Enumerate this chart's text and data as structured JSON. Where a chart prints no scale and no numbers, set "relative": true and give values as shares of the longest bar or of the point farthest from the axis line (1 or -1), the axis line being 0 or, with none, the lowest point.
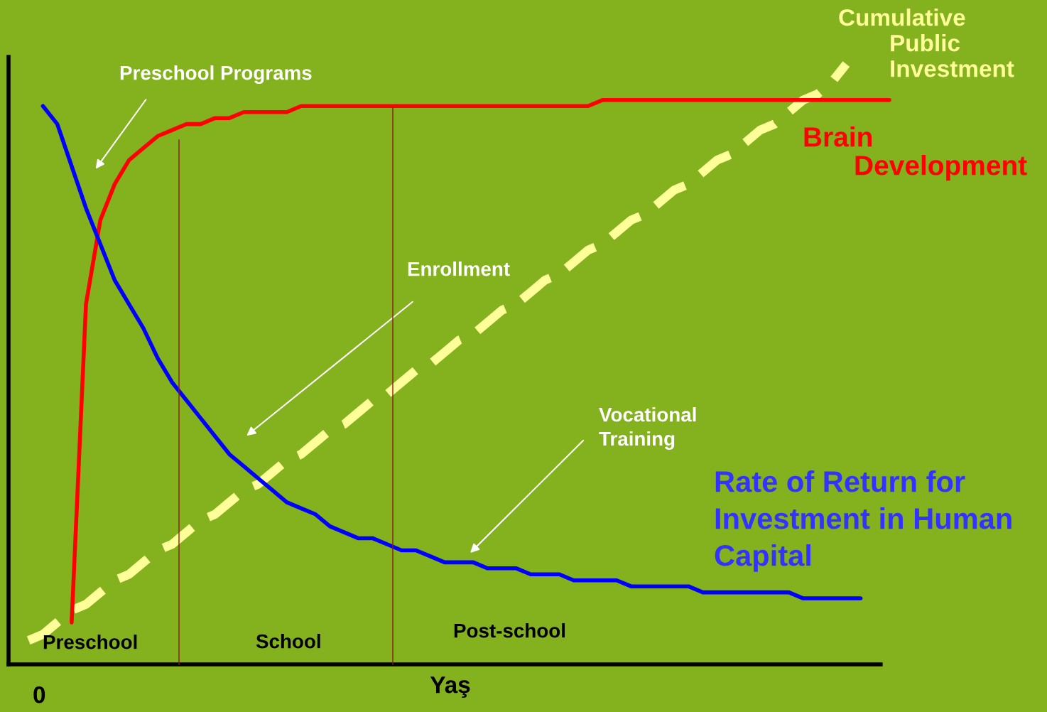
{
  "chart_data": {
    "type": "line",
    "relative": true,
    "xlabel": "Yaş",
    "categories": [
      null,
      null,
      null,
      null,
      null,
      null,
      null,
      null,
      null,
      null,
      null,
      null,
      null,
      null,
      null,
      null,
      null,
      null,
      null,
      null,
      null,
      null,
      null,
      null,
      null,
      null,
      null,
      null,
      null,
      null,
      null,
      null,
      null,
      null,
      null,
      null,
      null,
      null,
      null,
      null,
      null,
      null,
      null,
      null,
      null,
      null,
      null,
      null,
      null,
      null,
      null,
      null,
      null,
      null,
      null,
      null,
      null,
      null,
      null,
      null,
      null
    ],
    "series": [
      {
        "name": "Cumulative\nPublic\nInvestment",
        "color": "#ffff99",
        "line_style": "dashed",
        "values": [
          0.04,
          0.05,
          0.07,
          0.09,
          0.1,
          0.12,
          0.14,
          0.15,
          0.17,
          0.19,
          0.2,
          0.22,
          0.24,
          0.25,
          0.27,
          0.29,
          0.3,
          0.32,
          0.34,
          0.35,
          0.37,
          0.39,
          0.4,
          0.42,
          0.44,
          0.45,
          0.47,
          0.49,
          0.5,
          0.52,
          0.54,
          0.55,
          0.57,
          0.59,
          0.6,
          0.62,
          0.64,
          0.65,
          0.67,
          0.69,
          0.7,
          0.72,
          0.74,
          0.75,
          0.77,
          0.79,
          0.8,
          0.82,
          0.84,
          0.85,
          0.87,
          0.89,
          0.9,
          0.92,
          0.94,
          0.95,
          0.97,
          1.0,
          null,
          null,
          null
        ]
      },
      {
        "name": "Brain\nDevelopment",
        "color": "#ff0000",
        "line_style": "solid",
        "values": [
          null,
          null,
          null,
          0.07,
          0.6,
          0.74,
          0.8,
          0.84,
          0.86,
          0.88,
          0.89,
          0.9,
          0.9,
          0.91,
          0.91,
          0.92,
          0.92,
          0.92,
          0.92,
          0.93,
          0.93,
          0.93,
          0.93,
          0.93,
          0.93,
          0.93,
          0.93,
          0.93,
          0.93,
          0.93,
          0.93,
          0.93,
          0.93,
          0.93,
          0.93,
          0.93,
          0.93,
          0.93,
          0.93,
          0.93,
          0.94,
          0.94,
          0.94,
          0.94,
          0.94,
          0.94,
          0.94,
          0.94,
          0.94,
          0.94,
          0.94,
          0.94,
          0.94,
          0.94,
          0.94,
          0.94,
          0.94,
          0.94,
          0.94,
          0.94,
          0.94
        ]
      },
      {
        "name": "Rate of Return for\nInvestment in Human\nCapital",
        "color": "#0000ff",
        "line_style": "solid",
        "values": [
          null,
          0.93,
          0.9,
          0.83,
          0.76,
          0.7,
          0.64,
          0.6,
          0.56,
          0.51,
          0.47,
          0.44,
          0.41,
          0.38,
          0.35,
          0.33,
          0.31,
          0.29,
          0.27,
          0.26,
          0.25,
          0.23,
          0.22,
          0.21,
          0.21,
          0.2,
          0.19,
          0.19,
          0.18,
          0.17,
          0.17,
          0.17,
          0.16,
          0.16,
          0.16,
          0.15,
          0.15,
          0.15,
          0.14,
          0.14,
          0.14,
          0.14,
          0.13,
          0.13,
          0.13,
          0.13,
          0.13,
          0.12,
          0.12,
          0.12,
          0.12,
          0.12,
          0.12,
          0.12,
          0.11,
          0.11,
          0.11,
          0.11,
          0.11,
          null,
          null
        ]
      }
    ],
    "annotations": [
      "Preschool Programs",
      "Enrollment",
      "Vocational\nTraining",
      "Preschool",
      "School",
      "Post-school",
      "0"
    ],
    "grid": false,
    "legend": false
  }
}
